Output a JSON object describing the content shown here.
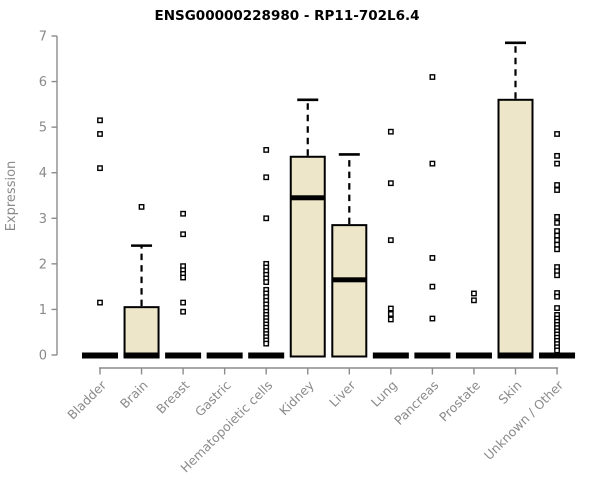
{
  "chart_data": {
    "type": "boxplot",
    "title": "ENSG00000228980 - RP11-702L6.4",
    "ylabel": "Expression",
    "xlabel": "",
    "ylim": [
      0,
      7
    ],
    "yticks": [
      0,
      1,
      2,
      3,
      4,
      5,
      6,
      7
    ],
    "grid": false,
    "legend": "none",
    "categories": [
      "Bladder",
      "Brain",
      "Breast",
      "Gastric",
      "Hematopoietic cells",
      "Kidney",
      "Liver",
      "Lung",
      "Pancreas",
      "Prostate",
      "Skin",
      "Unknown / Other"
    ],
    "series": [
      {
        "category": "Bladder",
        "whisker_low": 0,
        "q1": 0,
        "median": 0,
        "q3": 0,
        "whisker_high": 0,
        "outliers": [
          5.15,
          4.85,
          4.1,
          1.15
        ]
      },
      {
        "category": "Brain",
        "whisker_low": 0,
        "q1": 0,
        "median": 0,
        "q3": 1.05,
        "whisker_high": 2.4,
        "outliers": [
          3.25
        ]
      },
      {
        "category": "Breast",
        "whisker_low": 0,
        "q1": 0,
        "median": 0,
        "q3": 0,
        "whisker_high": 0,
        "outliers": [
          3.1,
          2.65,
          1.95,
          1.86,
          1.78,
          1.7,
          1.15,
          0.95
        ]
      },
      {
        "category": "Gastric",
        "whisker_low": 0,
        "q1": 0,
        "median": 0,
        "q3": 0,
        "whisker_high": 0,
        "outliers": []
      },
      {
        "category": "Hematopoietic cells",
        "whisker_low": 0,
        "q1": 0,
        "median": 0,
        "q3": 0,
        "whisker_high": 0,
        "outliers": [
          4.5,
          3.9,
          3.0,
          2.0,
          1.92,
          1.84,
          1.76,
          1.68,
          1.6,
          1.43,
          1.35,
          1.27,
          1.19,
          1.11,
          1.03,
          0.95,
          0.88,
          0.81,
          0.74,
          0.67,
          0.6,
          0.53,
          0.46,
          0.39,
          0.32,
          0.25
        ]
      },
      {
        "category": "Kidney",
        "whisker_low": 0,
        "q1": 0,
        "median": 3.45,
        "q3": 4.35,
        "whisker_high": 5.6,
        "outliers": []
      },
      {
        "category": "Liver",
        "whisker_low": 0,
        "q1": 0,
        "median": 1.65,
        "q3": 2.85,
        "whisker_high": 4.4,
        "outliers": []
      },
      {
        "category": "Lung",
        "whisker_low": 0,
        "q1": 0,
        "median": 0,
        "q3": 0,
        "whisker_high": 0,
        "outliers": [
          4.9,
          3.77,
          2.52,
          1.02,
          0.9,
          0.78
        ]
      },
      {
        "category": "Pancreas",
        "whisker_low": 0,
        "q1": 0,
        "median": 0,
        "q3": 0,
        "whisker_high": 0,
        "outliers": [
          6.1,
          4.2,
          2.13,
          1.5,
          0.8
        ]
      },
      {
        "category": "Prostate",
        "whisker_low": 0,
        "q1": 0,
        "median": 0,
        "q3": 0,
        "whisker_high": 0,
        "outliers": [
          1.35,
          1.2
        ]
      },
      {
        "category": "Skin",
        "whisker_low": 0,
        "q1": 0,
        "median": 0,
        "q3": 5.6,
        "whisker_high": 6.85,
        "outliers": []
      },
      {
        "category": "Unknown / Other",
        "whisker_low": 0,
        "q1": 0,
        "median": 0,
        "q3": 0,
        "whisker_high": 0,
        "outliers": [
          4.85,
          4.37,
          4.2,
          3.73,
          3.62,
          3.03,
          2.9,
          2.72,
          2.62,
          2.52,
          2.42,
          2.32,
          1.93,
          1.84,
          1.75,
          1.36,
          1.28,
          1.03,
          0.88,
          0.8,
          0.73,
          0.66,
          0.59,
          0.52,
          0.45,
          0.38,
          0.31,
          0.24,
          0.17,
          0.1
        ]
      }
    ],
    "colors": {
      "box_fill": "#EDE6C8",
      "box_border": "#000000",
      "median": "#000000",
      "whisker": "#000000",
      "outlier_stroke": "#000000",
      "outlier_fill": "#ffffff",
      "axis": "#8c8c8c",
      "tick_label": "#8a8a8a",
      "title": "#000000",
      "background": "#ffffff"
    }
  }
}
